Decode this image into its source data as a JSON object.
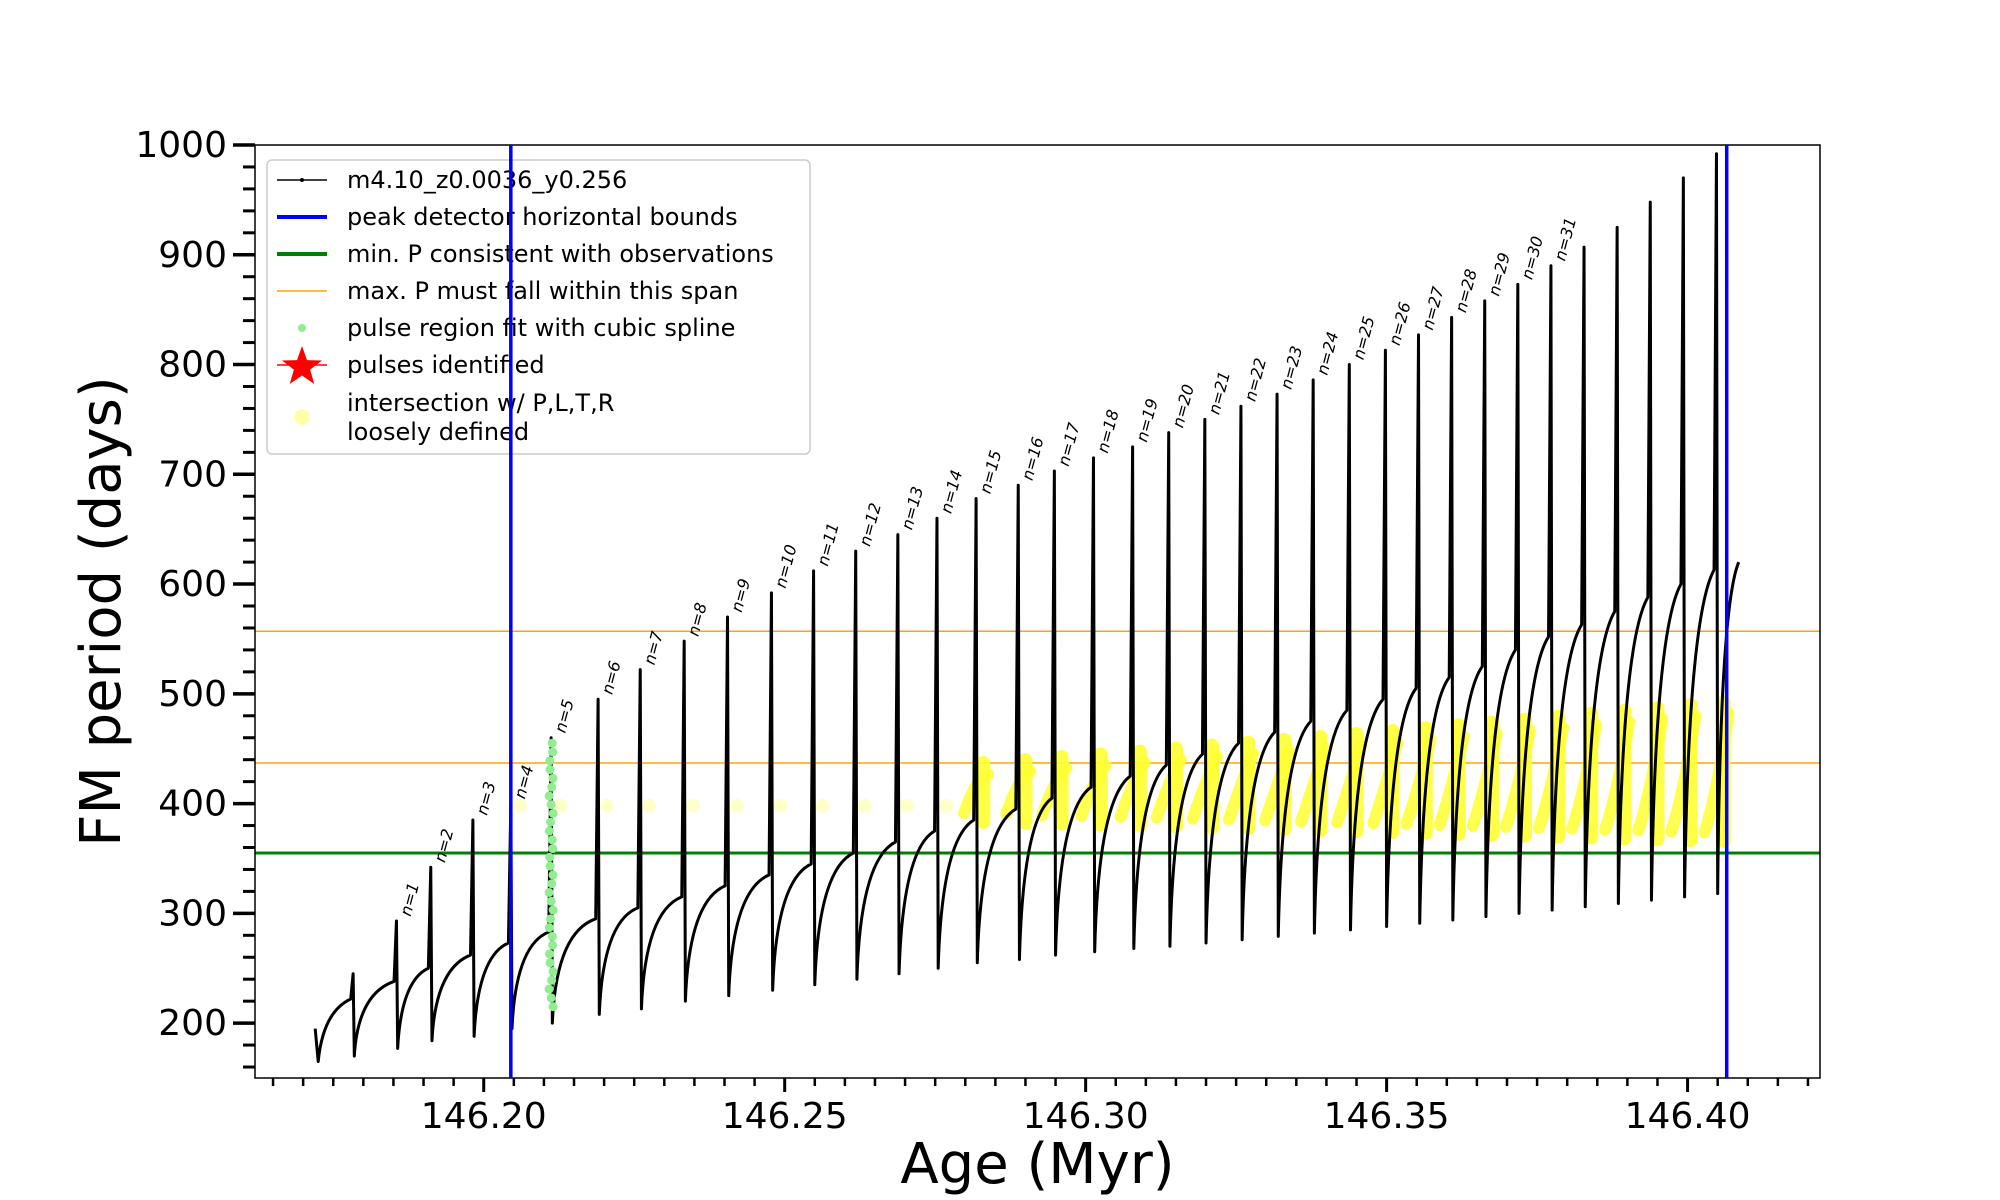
{
  "chart_data": {
    "type": "line",
    "xlabel": "Age (Myr)",
    "ylabel": "FM period (days)",
    "xlim": [
      146.162,
      146.422
    ],
    "ylim": [
      150,
      1000
    ],
    "x_ticks": [
      146.2,
      146.25,
      146.3,
      146.35,
      146.4
    ],
    "x_tick_labels": [
      "146.20",
      "146.25",
      "146.30",
      "146.35",
      "146.40"
    ],
    "y_ticks": [
      200,
      300,
      400,
      500,
      600,
      700,
      800,
      900,
      1000
    ],
    "y_tick_labels": [
      "200",
      "300",
      "400",
      "500",
      "600",
      "700",
      "800",
      "900",
      "1000"
    ],
    "legend": {
      "position": "upper-left",
      "entries": [
        {
          "label": "m4.10_z0.0036_y0.256",
          "kind": "line-marker",
          "color": "#000000"
        },
        {
          "label": "peak detector horizontal bounds",
          "kind": "line",
          "color": "#0000ff"
        },
        {
          "label": "min. P consistent with observations",
          "kind": "line",
          "color": "#008000"
        },
        {
          "label": "max. P must fall within this span",
          "kind": "thin-line",
          "color": "#ffa500"
        },
        {
          "label": "pulse region fit with cubic spline",
          "kind": "dot",
          "color": "#90ee90"
        },
        {
          "label": "pulses identified",
          "kind": "star",
          "color": "#ff0000"
        },
        {
          "label": "intersection w/ P,L,T,R",
          "label2": "loosely defined",
          "kind": "circle",
          "color": "#ffff66"
        }
      ]
    },
    "vertical_lines": [
      {
        "x": 146.2045,
        "color": "#0000ff",
        "series": "peak detector horizontal bounds"
      },
      {
        "x": 146.4065,
        "color": "#0000ff",
        "series": "peak detector horizontal bounds"
      }
    ],
    "horizontal_lines": [
      {
        "y": 355,
        "color": "#008000",
        "series": "min. P consistent with observations"
      },
      {
        "y": 437,
        "color": "#ffa500",
        "series": "max. P must fall within this span"
      },
      {
        "y": 557,
        "color": "#ffa500",
        "series": "max. P must fall within this span"
      }
    ],
    "pulses": [
      {
        "label": "n=1",
        "x": 146.1855,
        "peak": 293,
        "dip": 177,
        "base_start": 192,
        "base_end": 238
      },
      {
        "label": "n=2",
        "x": 146.1912,
        "peak": 342,
        "dip": 184,
        "base_start": 205,
        "base_end": 250
      },
      {
        "label": "n=3",
        "x": 146.1982,
        "peak": 385,
        "dip": 188,
        "base_start": 212,
        "base_end": 262
      },
      {
        "label": "n=4",
        "x": 146.2045,
        "peak": 400,
        "dip": 195,
        "base_start": 225,
        "base_end": 273
      },
      {
        "label": "n=5",
        "x": 146.2112,
        "peak": 460,
        "dip": 200,
        "base_start": 235,
        "base_end": 283
      },
      {
        "label": "n=6",
        "x": 146.219,
        "peak": 495,
        "dip": 208,
        "base_start": 245,
        "base_end": 295
      },
      {
        "label": "n=7",
        "x": 146.226,
        "peak": 522,
        "dip": 213,
        "base_start": 255,
        "base_end": 305
      },
      {
        "label": "n=8",
        "x": 146.2333,
        "peak": 548,
        "dip": 220,
        "base_start": 262,
        "base_end": 315
      },
      {
        "label": "n=9",
        "x": 146.2405,
        "peak": 570,
        "dip": 225,
        "base_start": 270,
        "base_end": 325
      },
      {
        "label": "n=10",
        "x": 146.2478,
        "peak": 592,
        "dip": 230,
        "base_start": 278,
        "base_end": 335
      },
      {
        "label": "n=11",
        "x": 146.2548,
        "peak": 612,
        "dip": 235,
        "base_start": 285,
        "base_end": 345
      },
      {
        "label": "n=12",
        "x": 146.2618,
        "peak": 630,
        "dip": 240,
        "base_start": 292,
        "base_end": 355
      },
      {
        "label": "n=13",
        "x": 146.2688,
        "peak": 645,
        "dip": 245,
        "base_start": 300,
        "base_end": 365
      },
      {
        "label": "n=14",
        "x": 146.2753,
        "peak": 660,
        "dip": 250,
        "base_start": 308,
        "base_end": 375
      },
      {
        "label": "n=15",
        "x": 146.2818,
        "peak": 678,
        "dip": 255,
        "base_start": 315,
        "base_end": 385
      },
      {
        "label": "n=16",
        "x": 146.2888,
        "peak": 690,
        "dip": 258,
        "base_start": 322,
        "base_end": 395
      },
      {
        "label": "n=17",
        "x": 146.2948,
        "peak": 703,
        "dip": 262,
        "base_start": 330,
        "base_end": 405
      },
      {
        "label": "n=18",
        "x": 146.3013,
        "peak": 715,
        "dip": 265,
        "base_start": 335,
        "base_end": 415
      },
      {
        "label": "n=19",
        "x": 146.3078,
        "peak": 725,
        "dip": 268,
        "base_start": 340,
        "base_end": 425
      },
      {
        "label": "n=20",
        "x": 146.3138,
        "peak": 738,
        "dip": 270,
        "base_start": 345,
        "base_end": 435
      },
      {
        "label": "n=21",
        "x": 146.3198,
        "peak": 750,
        "dip": 273,
        "base_start": 350,
        "base_end": 445
      },
      {
        "label": "n=22",
        "x": 146.3258,
        "peak": 762,
        "dip": 276,
        "base_start": 355,
        "base_end": 455
      },
      {
        "label": "n=23",
        "x": 146.3318,
        "peak": 773,
        "dip": 279,
        "base_start": 360,
        "base_end": 465
      },
      {
        "label": "n=24",
        "x": 146.3378,
        "peak": 786,
        "dip": 282,
        "base_start": 366,
        "base_end": 475
      },
      {
        "label": "n=25",
        "x": 146.3438,
        "peak": 800,
        "dip": 285,
        "base_start": 372,
        "base_end": 485
      },
      {
        "label": "n=26",
        "x": 146.3498,
        "peak": 813,
        "dip": 288,
        "base_start": 378,
        "base_end": 495
      },
      {
        "label": "n=27",
        "x": 146.3553,
        "peak": 827,
        "dip": 291,
        "base_start": 384,
        "base_end": 505
      },
      {
        "label": "n=28",
        "x": 146.3608,
        "peak": 843,
        "dip": 294,
        "base_start": 390,
        "base_end": 515
      },
      {
        "label": "n=29",
        "x": 146.3663,
        "peak": 858,
        "dip": 297,
        "base_start": 396,
        "base_end": 525
      },
      {
        "label": "n=30",
        "x": 146.3718,
        "peak": 873,
        "dip": 300,
        "base_start": 402,
        "base_end": 540
      },
      {
        "label": "n=31",
        "x": 146.3773,
        "peak": 890,
        "dip": 303,
        "base_start": 408,
        "base_end": 552
      },
      {
        "label": "",
        "x": 146.3828,
        "peak": 907,
        "dip": 306,
        "base_start": 414,
        "base_end": 563
      },
      {
        "label": "",
        "x": 146.3883,
        "peak": 925,
        "dip": 309,
        "base_start": 420,
        "base_end": 575
      },
      {
        "label": "",
        "x": 146.3938,
        "peak": 948,
        "dip": 312,
        "base_start": 426,
        "base_end": 588
      },
      {
        "label": "",
        "x": 146.3993,
        "peak": 970,
        "dip": 315,
        "base_start": 432,
        "base_end": 600
      },
      {
        "label": "",
        "x": 146.4048,
        "peak": 992,
        "dip": 318,
        "base_start": 438,
        "base_end": 613
      }
    ],
    "pulse_labels_shown": [
      "n=1",
      "n=2",
      "n=3",
      "n=4",
      "n=5",
      "n=6",
      "n=7",
      "n=8",
      "n=9",
      "n=10",
      "n=11",
      "n=12",
      "n=13",
      "n=14",
      "n=15",
      "n=16",
      "n=17",
      "n=18",
      "n=19",
      "n=20",
      "n=21",
      "n=22",
      "n=23",
      "n=24",
      "n=25",
      "n=26",
      "n=27",
      "n=28",
      "n=29",
      "n=30",
      "n=31"
    ],
    "first_dip": {
      "x": 146.1725,
      "y": 165
    },
    "end_of_track": {
      "x": 146.4085,
      "y": 620
    },
    "spline_fit_pulse": {
      "x": 146.2112,
      "y_min": 215,
      "y_max": 460
    },
    "intersection_region": {
      "x_start": 146.2045,
      "x_end": 146.4065
    }
  }
}
